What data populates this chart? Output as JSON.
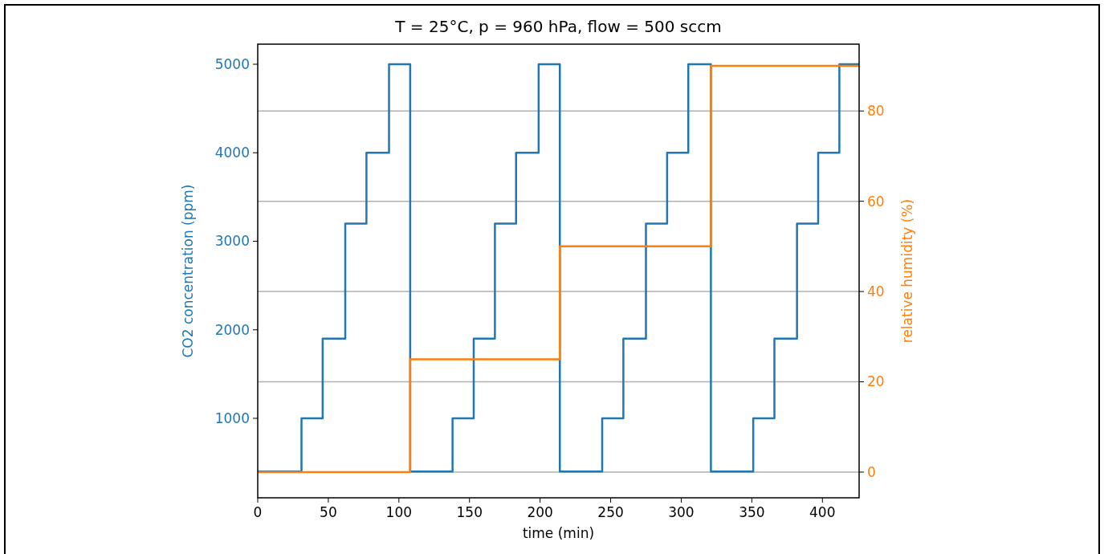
{
  "chart_data": {
    "type": "step",
    "title": "T = 25°C, p = 960 hPa, flow = 500 sccm",
    "xlabel": "time (min)",
    "ylabel": "CO2 concentration (ppm)",
    "y2label": "relative humidity (%)",
    "xlim": [
      0,
      426
    ],
    "xticks": [
      0,
      50,
      100,
      150,
      200,
      250,
      300,
      350,
      400
    ],
    "ylim": [
      102,
      5227
    ],
    "yticks": [
      1000,
      2000,
      3000,
      4000,
      5000
    ],
    "y2lim": [
      -5.7,
      94.8
    ],
    "y2ticks": [
      0,
      20,
      40,
      60,
      80
    ],
    "grid": "y2",
    "series": [
      {
        "color": "#1f77b4",
        "x": [
          0,
          31,
          46,
          62,
          77,
          93,
          108,
          138,
          153,
          168,
          183,
          199,
          214,
          244,
          259,
          275,
          290,
          305,
          321,
          351,
          366,
          382,
          397,
          412,
          426
        ],
        "values": [
          400,
          1000,
          1900,
          3200,
          4000,
          5000,
          400,
          1000,
          1900,
          3200,
          4000,
          5000,
          400,
          1000,
          1900,
          3200,
          4000,
          5000,
          400,
          1000,
          1900,
          3200,
          4000,
          5000,
          5000
        ]
      },
      {
        "color": "#ff7f0e",
        "axis": "y2",
        "x": [
          0,
          108,
          214,
          321,
          426
        ],
        "values": [
          0,
          25,
          50,
          90,
          90
        ]
      }
    ]
  }
}
